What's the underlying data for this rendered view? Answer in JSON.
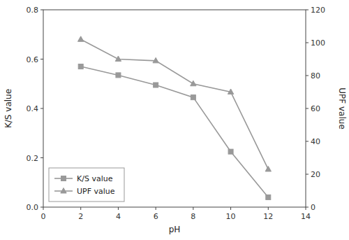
{
  "chart_data": {
    "type": "line",
    "x": [
      2,
      4,
      6,
      8,
      10,
      12
    ],
    "xlabel": "pH",
    "ylabel": "K/S value",
    "y2label": "UPF value",
    "series": [
      {
        "name": "K/S value",
        "color": "#999999",
        "marker": "square",
        "values": [
          0.57,
          0.535,
          0.495,
          0.445,
          0.225,
          0.04
        ]
      },
      {
        "name": "UPF value",
        "color": "#999999",
        "marker": "triangle",
        "axis": "y2",
        "values": [
          102,
          90,
          89,
          75,
          70,
          23
        ]
      }
    ],
    "xlim": [
      0,
      14
    ],
    "xticks": [
      0,
      2,
      4,
      6,
      8,
      10,
      12,
      14
    ],
    "ylim": [
      0.0,
      0.8
    ],
    "yticks": [
      {
        "value": 0.0,
        "label": "0.0"
      },
      0.2,
      0.4,
      0.6,
      0.8
    ],
    "y2lim": [
      0,
      120
    ],
    "y2ticks": [
      0,
      20,
      40,
      60,
      80,
      100,
      120
    ],
    "grid": false,
    "legend": "lower left"
  }
}
